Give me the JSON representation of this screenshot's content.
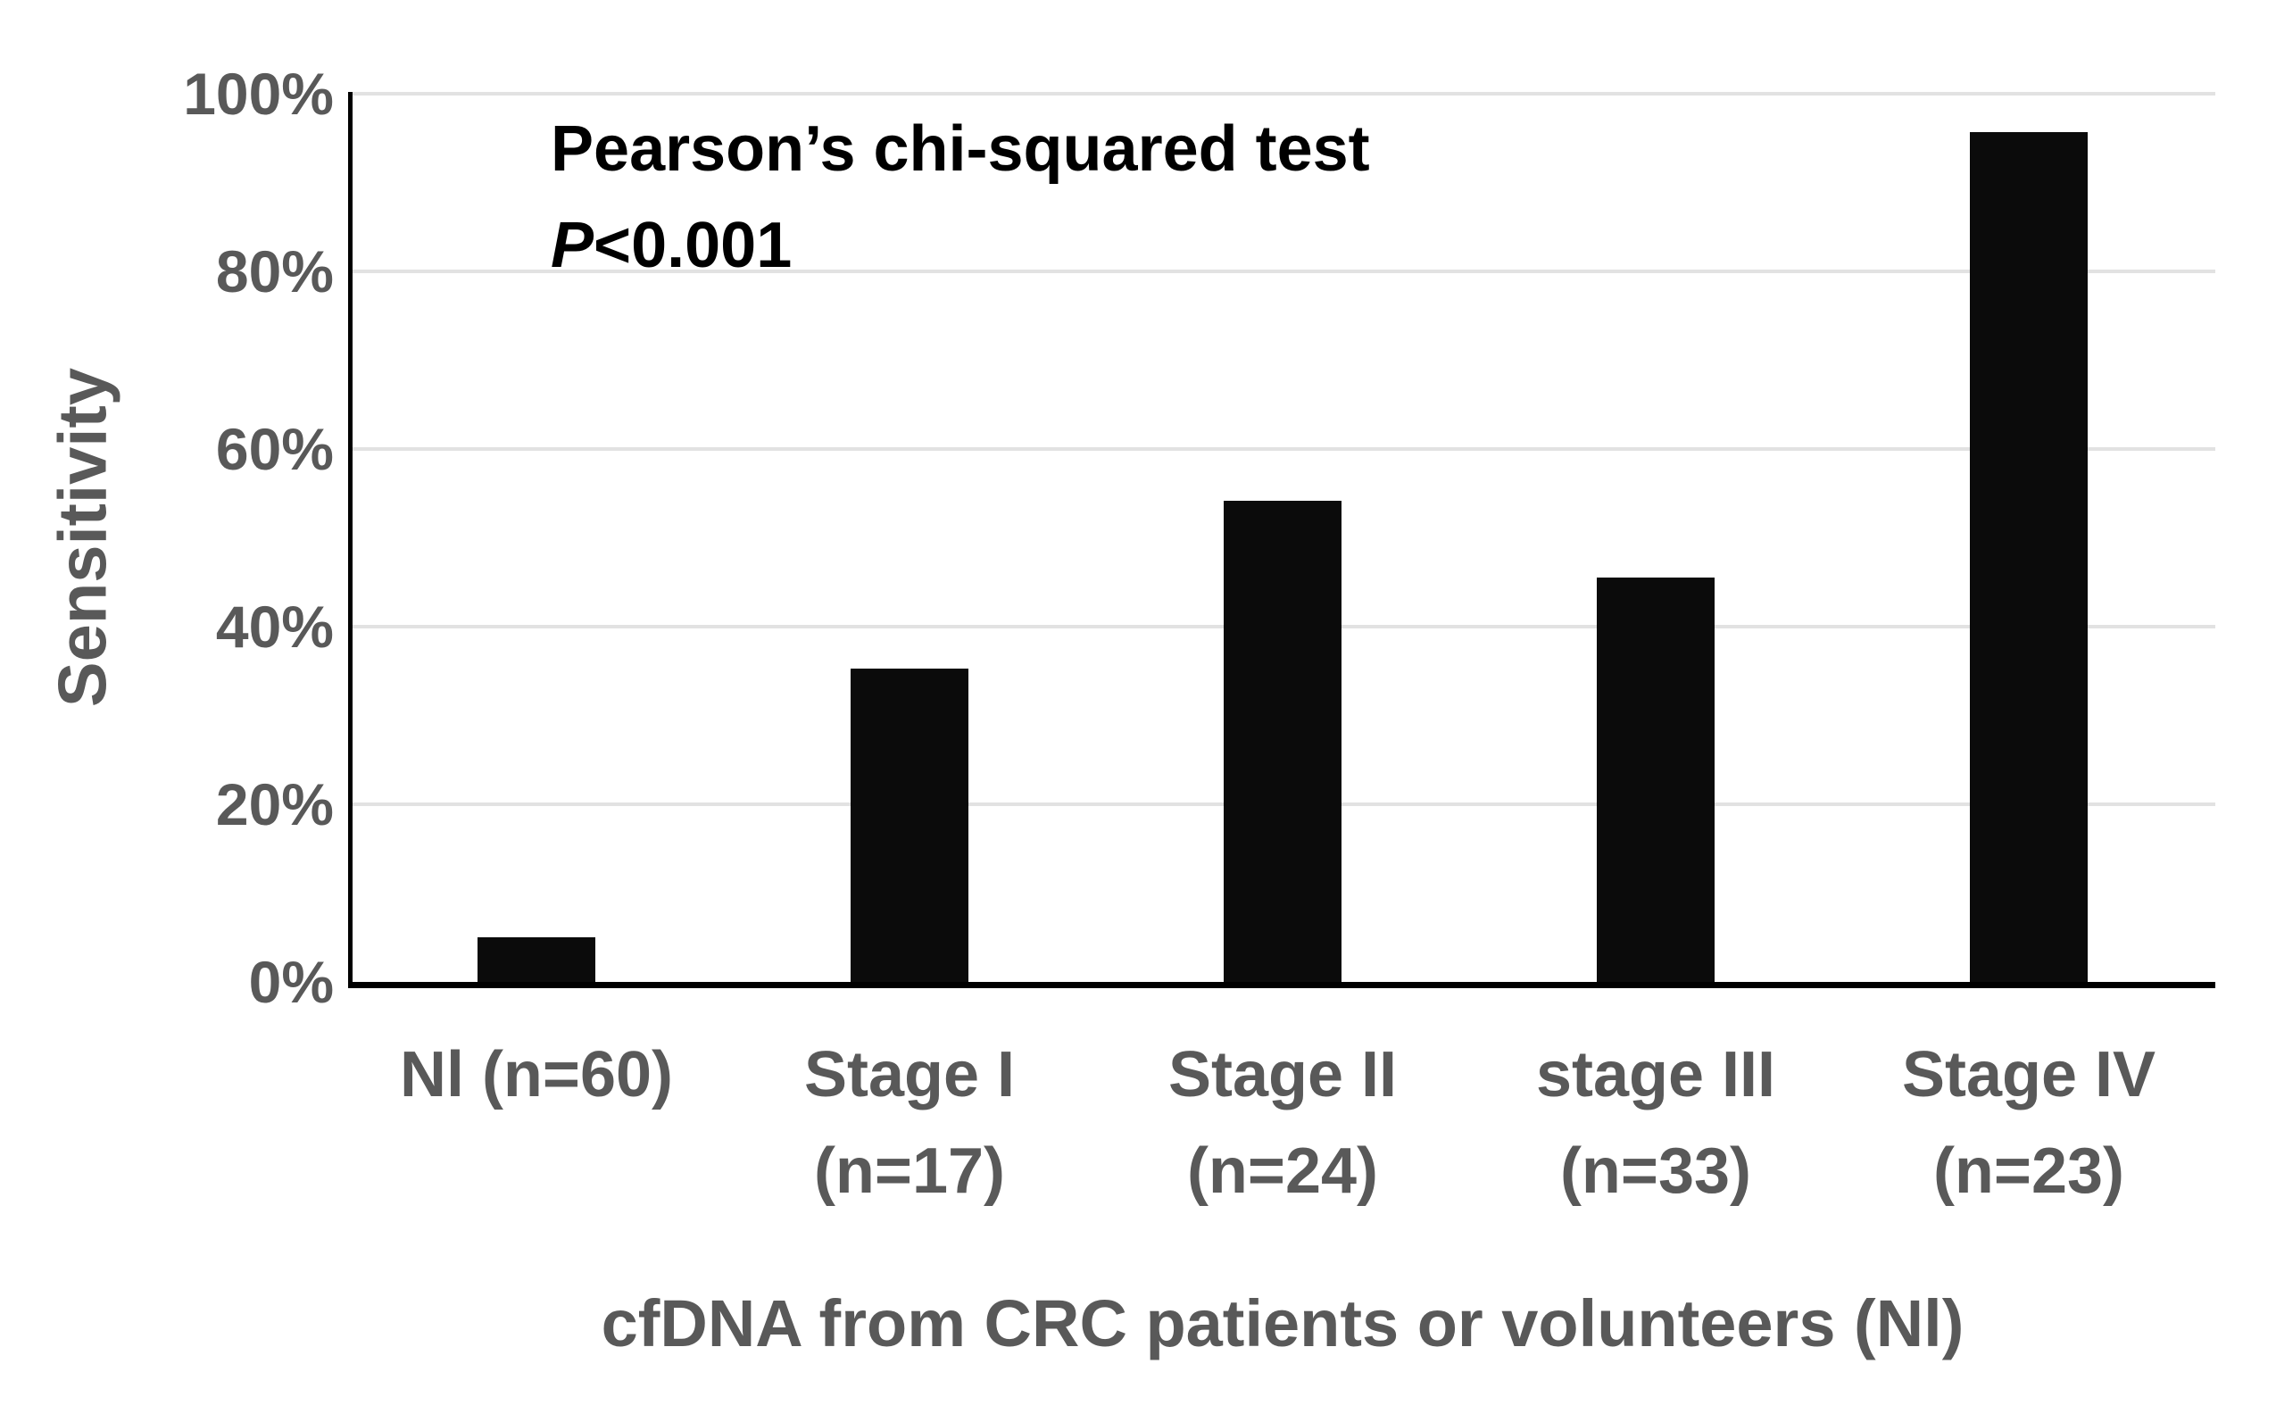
{
  "chart_data": {
    "type": "bar",
    "title": "",
    "xlabel": "cfDNA from CRC patients or volunteers (Nl)",
    "ylabel": "Sensitivity",
    "categories": [
      "Nl (n=60)",
      "Stage I (n=17)",
      "Stage II (n=24)",
      "stage III (n=33)",
      "Stage IV (n=23)"
    ],
    "category_label_lines": [
      [
        "Nl (n=60)"
      ],
      [
        "Stage I",
        "(n=17)"
      ],
      [
        "Stage II",
        "(n=24)"
      ],
      [
        "stage III",
        "(n=33)"
      ],
      [
        "Stage IV",
        "(n=23)"
      ]
    ],
    "values": [
      5,
      35.3,
      54.2,
      45.5,
      95.7
    ],
    "unit": "%",
    "ylim": [
      0,
      100
    ],
    "y_tick_values": [
      0,
      20,
      40,
      60,
      80,
      100
    ],
    "y_tick_labels": [
      "0%",
      "20%",
      "40%",
      "60%",
      "80%",
      "100%"
    ],
    "grid": true,
    "legend": "none",
    "annotation": {
      "line1": "Pearson’s chi-squared test",
      "line2_italic": "P",
      "line2_rest": "<0.001"
    },
    "colors": {
      "bar": "#0b0b0b",
      "axis_line": "#000000",
      "gridline": "#e2e2e2",
      "axis_text": "#595959",
      "annotation_text": "#000000",
      "background": "#ffffff"
    }
  }
}
